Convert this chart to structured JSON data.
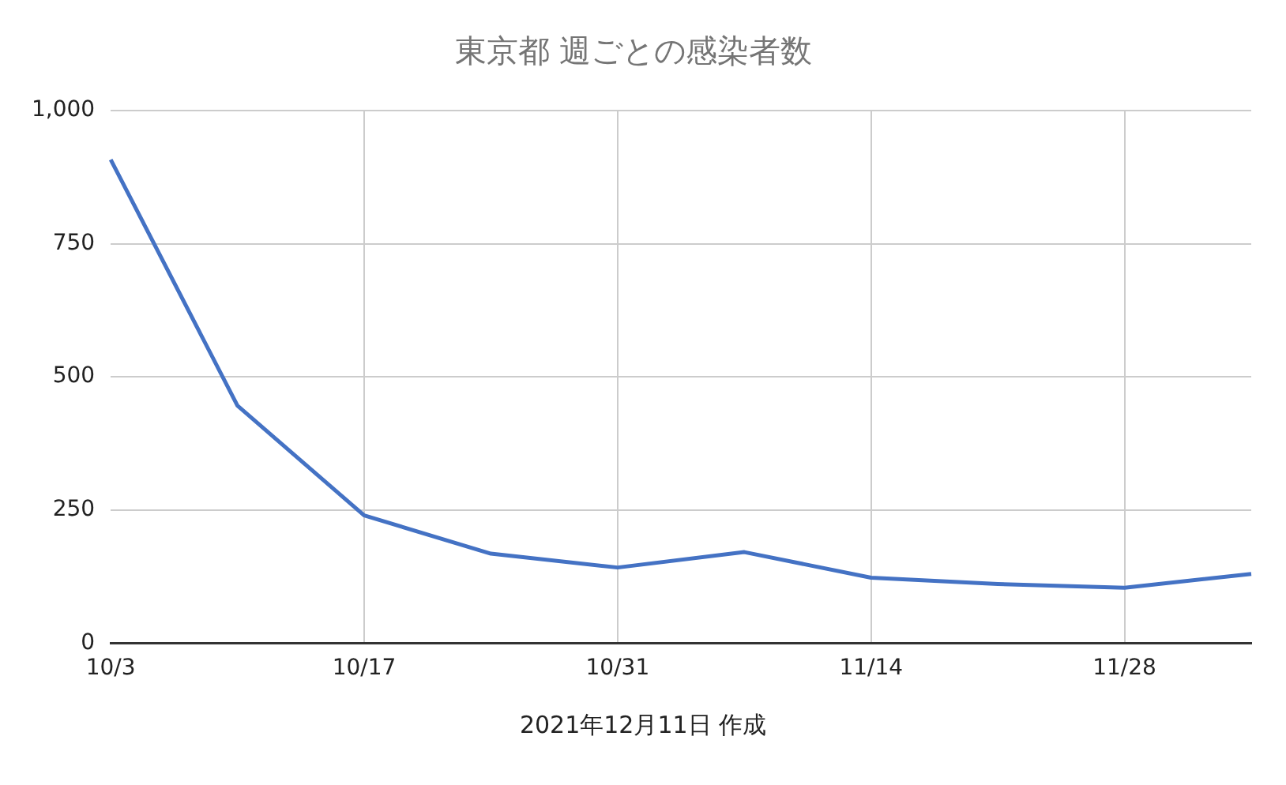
{
  "chart_data": {
    "type": "line",
    "title": "東京都 週ごとの感染者数",
    "categories": [
      "10/3",
      null,
      "10/17",
      null,
      "10/31",
      null,
      "11/14",
      null,
      "11/28",
      null
    ],
    "series": [
      {
        "color": "#4472c4",
        "values": [
          908,
          446,
          240,
          168,
          142,
          171,
          123,
          111,
          104,
          130
        ]
      }
    ],
    "ylim": [
      0,
      1000
    ],
    "yticks": [
      0,
      250,
      500,
      750,
      {
        "value": 1000,
        "label": "1,000"
      }
    ],
    "grid": true,
    "legend": false,
    "marker": "none",
    "line_style": "solid",
    "annotations": [
      "2021年12月11日 作成"
    ]
  }
}
